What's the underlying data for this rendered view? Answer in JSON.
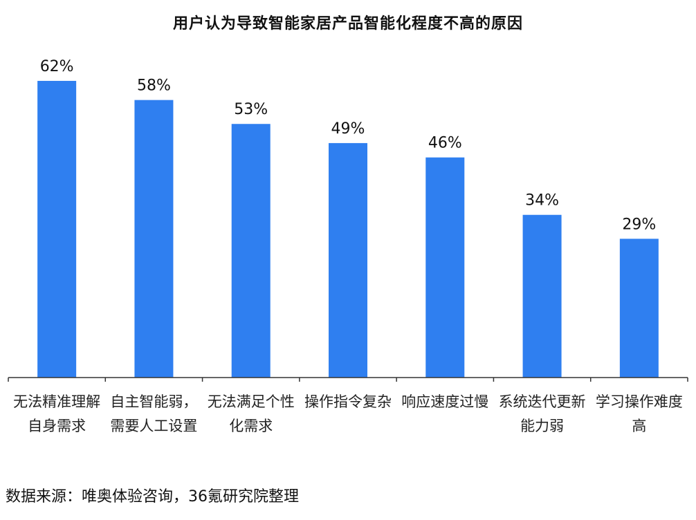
{
  "chart_data": {
    "type": "bar",
    "title": "用户认为导致智能家居产品智能化程度不高的原因",
    "categories": [
      "无法精准理解自身需求",
      "自主智能弱，需要人工设置",
      "无法满足个性化需求",
      "操作指令复杂",
      "响应速度过慢",
      "系统迭代更新能力弱",
      "学习操作难度高"
    ],
    "values": [
      62,
      58,
      53,
      49,
      46,
      34,
      29
    ],
    "value_labels": [
      "62%",
      "58%",
      "53%",
      "49%",
      "46%",
      "34%",
      "29%"
    ],
    "unit": "%",
    "ylim": [
      0,
      70
    ],
    "xlabel": "",
    "ylabel": "",
    "grid": false,
    "bar_color": "#2f7ff0"
  },
  "source_note": "数据来源：唯奥体验咨询，36氪研究院整理"
}
